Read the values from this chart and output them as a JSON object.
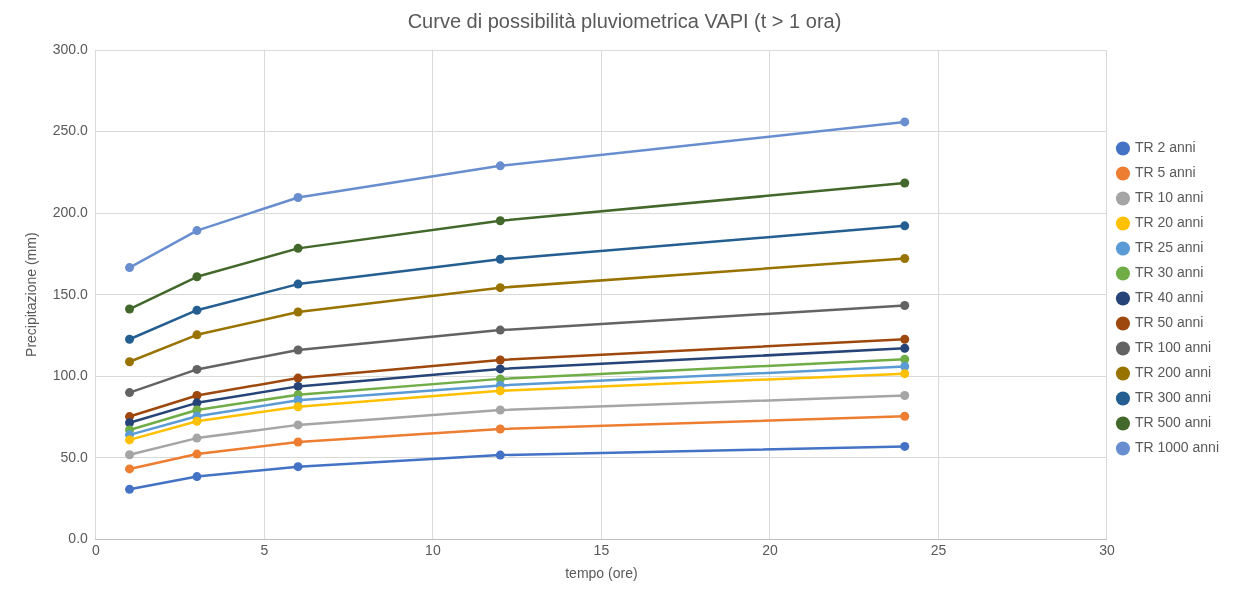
{
  "chart_data": {
    "type": "line",
    "title": "Curve di possibilità pluviometrica VAPI (t > 1 ora)",
    "xlabel": "tempo (ore)",
    "ylabel": "Precipitazione (mm)",
    "x": [
      1,
      3,
      6,
      12,
      24
    ],
    "xlim": [
      0,
      30
    ],
    "xticks": [
      0,
      5,
      10,
      15,
      20,
      25,
      30
    ],
    "ylim": [
      0,
      300
    ],
    "yticks": [
      {
        "value": 0,
        "label": "0.0"
      },
      {
        "value": 50,
        "label": "50.0"
      },
      {
        "value": 100,
        "label": "100.0"
      },
      {
        "value": 150,
        "label": "150.0"
      },
      {
        "value": 200,
        "label": "200.0"
      },
      {
        "value": 250,
        "label": "250.0"
      },
      {
        "value": 300,
        "label": "300.0"
      }
    ],
    "grid": true,
    "legend": "right",
    "marker": "circle",
    "line_style": "solid",
    "series": [
      {
        "name": "TR 2 anni",
        "color": "#4472c4",
        "values": [
          30.7,
          38.5,
          44.6,
          51.7,
          57.0
        ]
      },
      {
        "name": "TR 5 anni",
        "color": "#ed7d31",
        "values": [
          43.2,
          52.3,
          59.7,
          67.7,
          75.5
        ]
      },
      {
        "name": "TR 10 anni",
        "color": "#a5a5a5",
        "values": [
          51.9,
          62.1,
          70.2,
          79.3,
          88.2
        ]
      },
      {
        "name": "TR 20 anni",
        "color": "#ffc000",
        "values": [
          61.0,
          72.4,
          81.3,
          91.1,
          101.6
        ]
      },
      {
        "name": "TR 25 anni",
        "color": "#5b9bd5",
        "values": [
          64.1,
          75.5,
          85.3,
          94.4,
          106.0
        ]
      },
      {
        "name": "TR 30 anni",
        "color": "#70ad47",
        "values": [
          67.1,
          79.3,
          88.7,
          98.4,
          110.4
        ]
      },
      {
        "name": "TR 40 anni",
        "color": "#264478",
        "values": [
          71.5,
          83.7,
          93.8,
          104.5,
          117.1
        ]
      },
      {
        "name": "TR 50 anni",
        "color": "#9e480e",
        "values": [
          75.3,
          88.2,
          98.9,
          110.0,
          122.7
        ]
      },
      {
        "name": "TR 100 anni",
        "color": "#636363",
        "values": [
          90.0,
          104.2,
          116.1,
          128.3,
          143.4
        ]
      },
      {
        "name": "TR 200 anni",
        "color": "#997300",
        "values": [
          108.9,
          125.4,
          139.4,
          154.3,
          172.2
        ]
      },
      {
        "name": "TR 300 anni",
        "color": "#255e91",
        "values": [
          122.7,
          140.5,
          156.5,
          171.7,
          192.2
        ]
      },
      {
        "name": "TR 500 anni",
        "color": "#43682b",
        "values": [
          141.2,
          161.0,
          178.4,
          195.3,
          218.5
        ]
      },
      {
        "name": "TR 1000 anni",
        "color": "#698ed0",
        "values": [
          166.6,
          189.3,
          209.6,
          229.0,
          255.9
        ]
      }
    ]
  }
}
